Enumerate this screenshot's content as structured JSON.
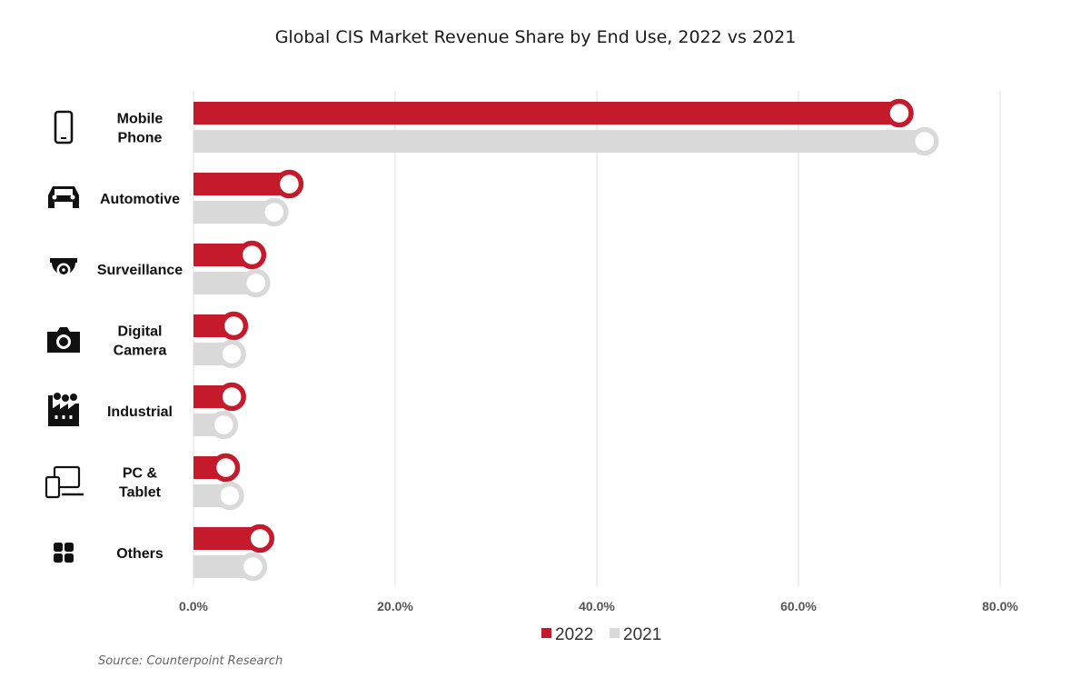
{
  "chart_data": {
    "type": "bar",
    "orientation": "horizontal",
    "title": "Global CIS Market Revenue Share by End Use, 2022 vs 2021",
    "categories": [
      "Mobile Phone",
      "Automotive",
      "Surveillance",
      "Digital Camera",
      "Industrial",
      "PC & Tablet",
      "Others"
    ],
    "category_lines": [
      [
        "Mobile",
        "Phone"
      ],
      [
        "Automotive"
      ],
      [
        "Surveillance"
      ],
      [
        "Digital",
        "Camera"
      ],
      [
        "Industrial"
      ],
      [
        "PC &",
        "Tablet"
      ],
      [
        "Others"
      ]
    ],
    "category_icons": [
      "mobile-phone-icon",
      "car-icon",
      "surveillance-camera-icon",
      "camera-icon",
      "factory-icon",
      "pc-tablet-icon",
      "grid-icon"
    ],
    "series": [
      {
        "name": "2022",
        "color": "#c41a2c",
        "values": [
          70.0,
          9.5,
          5.8,
          4.0,
          3.8,
          3.2,
          6.6
        ]
      },
      {
        "name": "2021",
        "color": "#d9d9d9",
        "values": [
          72.5,
          8.0,
          6.2,
          3.8,
          3.0,
          3.6,
          5.9
        ]
      }
    ],
    "xlim": [
      0,
      80
    ],
    "xticks": [
      0,
      20,
      40,
      60,
      80
    ],
    "xtick_labels": [
      "0.0%",
      "20.0%",
      "40.0%",
      "60.0%",
      "80.0%"
    ],
    "grid": true,
    "legend": "bottom-center"
  },
  "source": "Source: Counterpoint Research"
}
